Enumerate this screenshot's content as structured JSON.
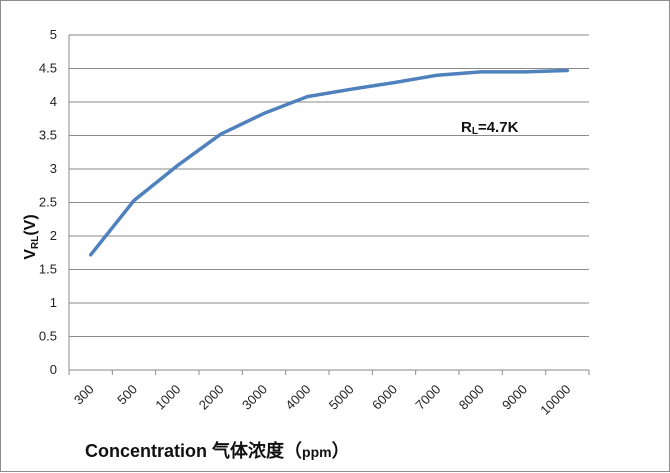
{
  "chart_data": {
    "type": "line",
    "categories": [
      "300",
      "500",
      "1000",
      "2000",
      "3000",
      "4000",
      "5000",
      "6000",
      "7000",
      "8000",
      "9000",
      "10000"
    ],
    "series": [
      {
        "values": [
          1.72,
          2.53,
          3.05,
          3.52,
          3.83,
          4.08,
          4.19,
          4.29,
          4.4,
          4.45,
          4.45,
          4.47
        ]
      }
    ],
    "ylim": [
      0,
      5
    ],
    "yticks": [
      "0",
      "0.5",
      "1",
      "1.5",
      "2",
      "2.5",
      "3",
      "3.5",
      "4",
      "4.5",
      "5"
    ],
    "grid": true,
    "line_color": "#4f81bd",
    "ylabel": {
      "main": "V",
      "sub": "RL",
      "tail": "(V)"
    },
    "xlabel": {
      "main": "Concentration  气体浓度（",
      "unit": "ppm",
      "tail": "）"
    },
    "annotation": {
      "main": "R",
      "sub": "L",
      "tail": "=4.7K"
    }
  }
}
